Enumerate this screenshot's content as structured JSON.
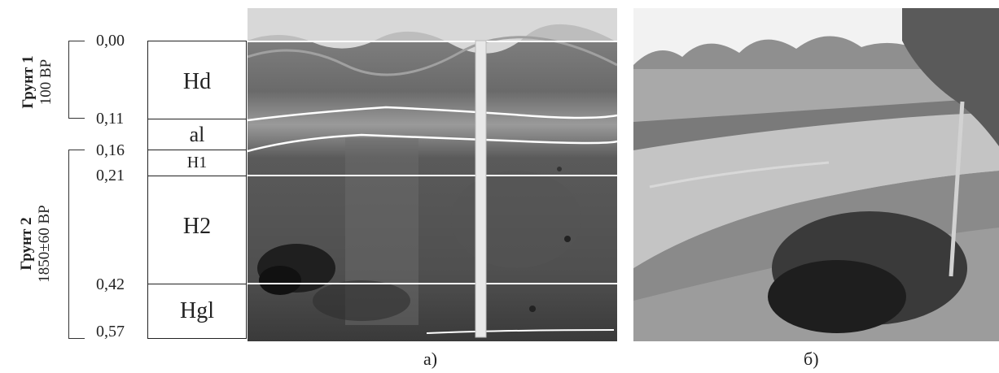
{
  "depths": [
    "0,00",
    "0,11",
    "0,16",
    "0,21",
    "0,42",
    "0,57"
  ],
  "horizons": [
    "Hd",
    "al",
    "H1",
    "H2",
    "Hgl"
  ],
  "grounds": [
    {
      "name": "Грунт 1",
      "age": "100 BP"
    },
    {
      "name": "Грунт 2",
      "age": "1850±60 BP"
    }
  ],
  "captions": {
    "a": "а)",
    "b": "б)"
  }
}
